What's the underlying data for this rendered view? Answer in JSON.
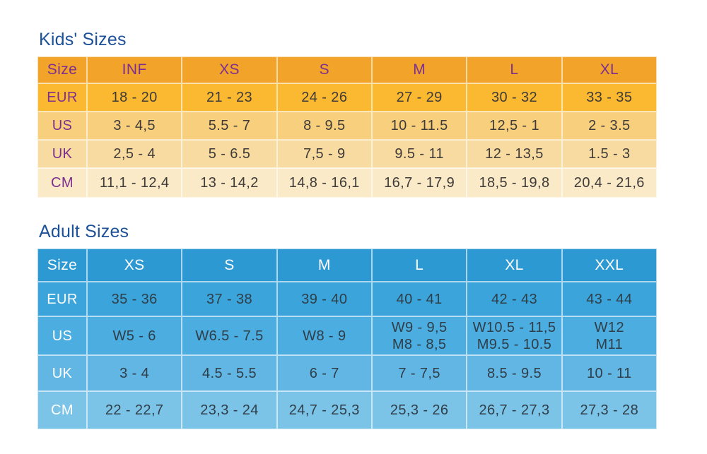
{
  "kids_table": {
    "title": "Kids' Sizes",
    "header": [
      "Size",
      "INF",
      "XS",
      "S",
      "M",
      "L",
      "XL"
    ],
    "rows": [
      {
        "label": "EUR",
        "values": [
          "18 - 20",
          "21 - 23",
          "24 - 26",
          "27 - 29",
          "30 - 32",
          "33 - 35"
        ]
      },
      {
        "label": "US",
        "values": [
          "3 - 4,5",
          "5.5 - 7",
          "8 - 9.5",
          "10 - 11.5",
          "12,5 - 1",
          "2 - 3.5"
        ]
      },
      {
        "label": "UK",
        "values": [
          "2,5 - 4",
          "5 - 6.5",
          "7,5 - 9",
          "9.5 - 11",
          "12 - 13,5",
          "1.5 - 3"
        ]
      },
      {
        "label": "CM",
        "values": [
          "11,1 - 12,4",
          "13 - 14,2",
          "14,8 - 16,1",
          "16,7 - 17,9",
          "18,5 - 19,8",
          "20,4 - 21,6"
        ]
      }
    ],
    "colors": {
      "header_bg": "#f2a32a",
      "row_bgs": [
        "#fbb831",
        "#f8cf7d",
        "#f8dba1",
        "#faeac7"
      ],
      "label_text": "#7c2f90",
      "value_text": "#3f3b39"
    }
  },
  "adult_table": {
    "title": "Adult Sizes",
    "header": [
      "Size",
      "XS",
      "S",
      "M",
      "L",
      "XL",
      "XXL"
    ],
    "rows": [
      {
        "label": "EUR",
        "values": [
          "35 - 36",
          "37 - 38",
          "39 - 40",
          "40 - 41",
          "42 - 43",
          "43 - 44"
        ]
      },
      {
        "label": "US",
        "values": [
          "W5 - 6",
          "W6.5 - 7.5",
          "W8 - 9",
          "W9 - 9,5\nM8 - 8,5",
          "W10.5 - 11,5\nM9.5 - 10.5",
          "W12\nM11"
        ]
      },
      {
        "label": "UK",
        "values": [
          "3 - 4",
          "4.5 - 5.5",
          "6 - 7",
          "7 - 7,5",
          "8.5 - 9.5",
          "10 - 11"
        ]
      },
      {
        "label": "CM",
        "values": [
          "22 - 22,7",
          "23,3 - 24",
          "24,7 - 25,3",
          "25,3 - 26",
          "26,7 - 27,3",
          "27,3 - 28"
        ]
      }
    ],
    "colors": {
      "header_bg": "#2d99d2",
      "row_bgs": [
        "#3ba4da",
        "#4bade0",
        "#61b6e3",
        "#7cc3e8"
      ],
      "label_text": "#ffffff",
      "value_text": "#2f3e48"
    }
  },
  "titles_color": "#1d5199"
}
